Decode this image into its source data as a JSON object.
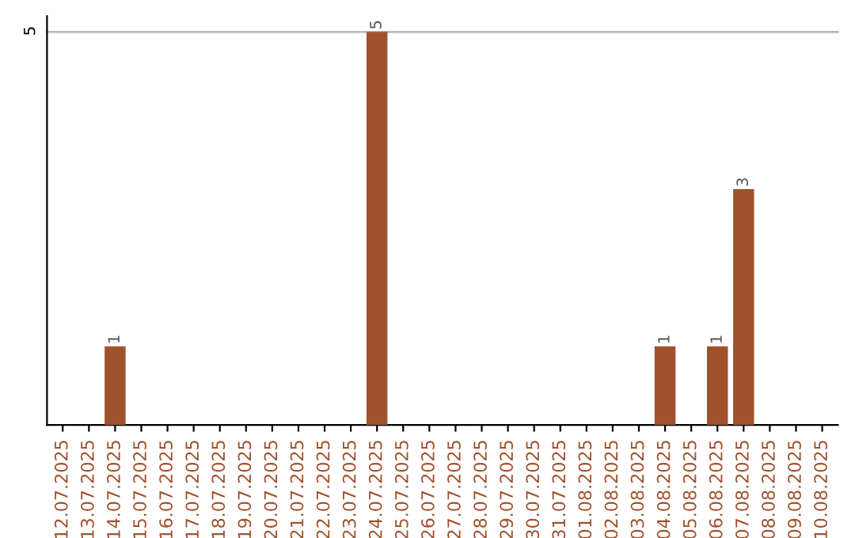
{
  "chart_data": {
    "type": "bar",
    "categories": [
      "12.07.2025",
      "13.07.2025",
      "14.07.2025",
      "15.07.2025",
      "16.07.2025",
      "17.07.2025",
      "18.07.2025",
      "19.07.2025",
      "20.07.2025",
      "21.07.2025",
      "22.07.2025",
      "23.07.2025",
      "24.07.2025",
      "25.07.2025",
      "26.07.2025",
      "27.07.2025",
      "28.07.2025",
      "29.07.2025",
      "30.07.2025",
      "31.07.2025",
      "01.08.2025",
      "02.08.2025",
      "03.08.2025",
      "04.08.2025",
      "05.08.2025",
      "06.08.2025",
      "07.08.2025",
      "08.08.2025",
      "09.08.2025",
      "10.08.2025"
    ],
    "values": [
      0,
      0,
      1,
      0,
      0,
      0,
      0,
      0,
      0,
      0,
      0,
      0,
      5,
      0,
      0,
      0,
      0,
      0,
      0,
      0,
      0,
      0,
      0,
      1,
      0,
      1,
      3,
      0,
      0,
      0
    ],
    "value_labels": [
      null,
      null,
      "1",
      null,
      null,
      null,
      null,
      null,
      null,
      null,
      null,
      null,
      "5",
      null,
      null,
      null,
      null,
      null,
      null,
      null,
      null,
      null,
      null,
      "1",
      null,
      "1",
      "3",
      null,
      null,
      null
    ],
    "color": "#a0522d",
    "ylim": [
      0,
      5.2
    ],
    "yticks": [
      5
    ],
    "grid": "y"
  }
}
